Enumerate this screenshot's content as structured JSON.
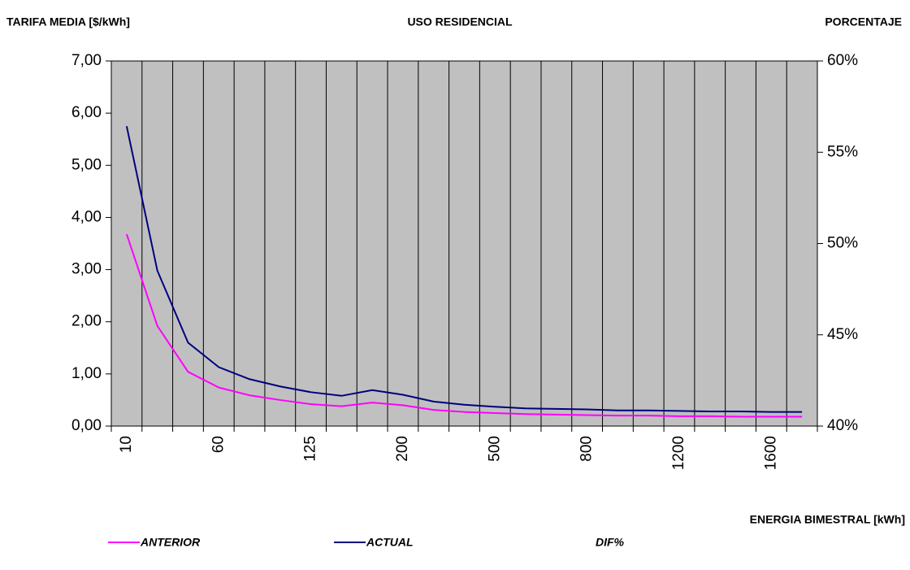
{
  "chart_data": {
    "type": "line",
    "title": "USO RESIDENCIAL",
    "y_label": "TARIFA MEDIA [$/kWh]",
    "y2_label": "PORCENTAJE",
    "x_label": "ENERGIA BIMESTRAL [kWh]",
    "categories": [
      "10",
      null,
      null,
      "60",
      null,
      null,
      "125",
      null,
      null,
      "200",
      null,
      null,
      "500",
      null,
      null,
      "800",
      null,
      null,
      "1200",
      null,
      null,
      "1600",
      null
    ],
    "series": [
      {
        "name": "ANTERIOR",
        "color": "#ff00ff",
        "values": [
          3.68,
          1.92,
          1.04,
          0.74,
          0.59,
          0.5,
          0.42,
          0.38,
          0.45,
          0.4,
          0.31,
          0.27,
          0.25,
          0.23,
          0.22,
          0.21,
          0.2,
          0.2,
          0.19,
          0.19,
          0.18,
          0.18,
          0.18
        ]
      },
      {
        "name": "ACTUAL",
        "color": "#000080",
        "values": [
          5.75,
          2.98,
          1.6,
          1.13,
          0.9,
          0.76,
          0.65,
          0.58,
          0.69,
          0.6,
          0.47,
          0.41,
          0.37,
          0.34,
          0.33,
          0.32,
          0.3,
          0.3,
          0.29,
          0.28,
          0.28,
          0.27,
          0.27
        ]
      },
      {
        "name": "DIF%",
        "axis": "y2",
        "values": [
          null,
          null,
          null,
          null,
          null,
          null,
          null,
          null,
          null,
          null,
          null,
          null,
          null,
          null,
          null,
          null,
          null,
          null,
          null,
          null,
          null,
          null,
          null
        ]
      }
    ],
    "ylim": [
      0,
      7
    ],
    "yticks": [
      {
        "value": 0,
        "label": "0,00"
      },
      {
        "value": 1,
        "label": "1,00"
      },
      {
        "value": 2,
        "label": "2,00"
      },
      {
        "value": 3,
        "label": "3,00"
      },
      {
        "value": 4,
        "label": "4,00"
      },
      {
        "value": 5,
        "label": "5,00"
      },
      {
        "value": 6,
        "label": "6,00"
      },
      {
        "value": 7,
        "label": "7,00"
      }
    ],
    "y2lim": [
      40,
      60
    ],
    "y2ticks": [
      {
        "value": 40,
        "label": "40%"
      },
      {
        "value": 45,
        "label": "45%"
      },
      {
        "value": 50,
        "label": "50%"
      },
      {
        "value": 55,
        "label": "55%"
      },
      {
        "value": 60,
        "label": "60%"
      }
    ],
    "x_grid": true,
    "grid": false,
    "plot_color": "#c0c0c0"
  }
}
